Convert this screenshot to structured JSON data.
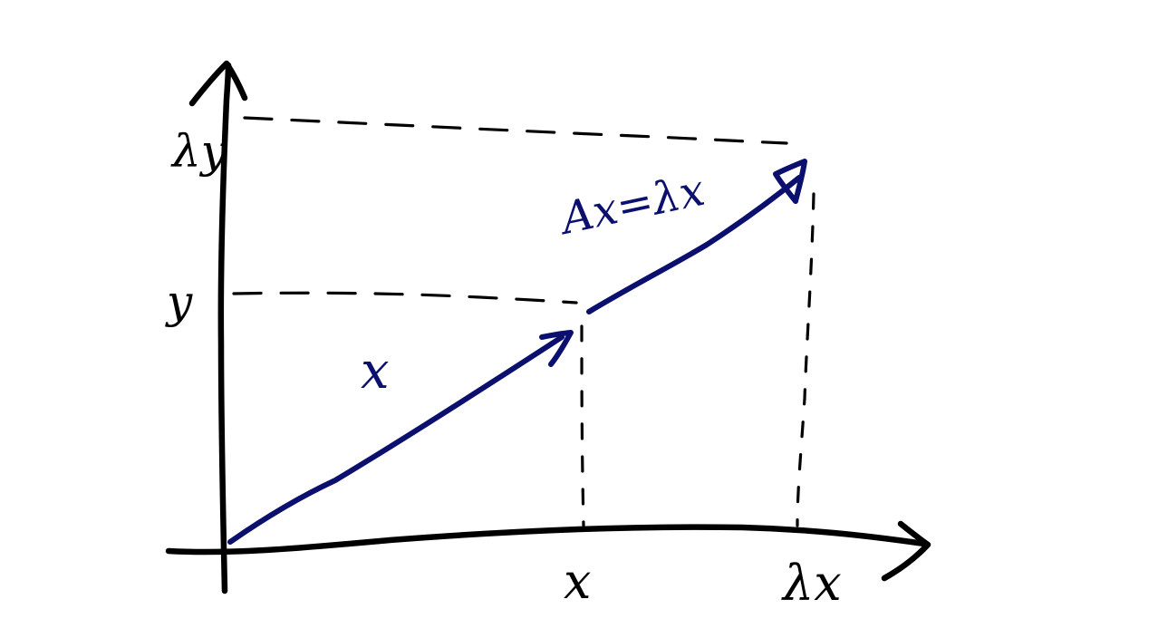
{
  "diagram": {
    "axis_labels": {
      "y_tick_lambda_y": "λy",
      "y_tick_y": "y",
      "x_tick_x": "x",
      "x_tick_lambda_x": "λx"
    },
    "vector_labels": {
      "x_vector": "x",
      "scaled_vector": "Ax=λx"
    },
    "colors": {
      "ink": "#000000",
      "vector": "#0b0f6e",
      "background": "#ffffff"
    }
  }
}
